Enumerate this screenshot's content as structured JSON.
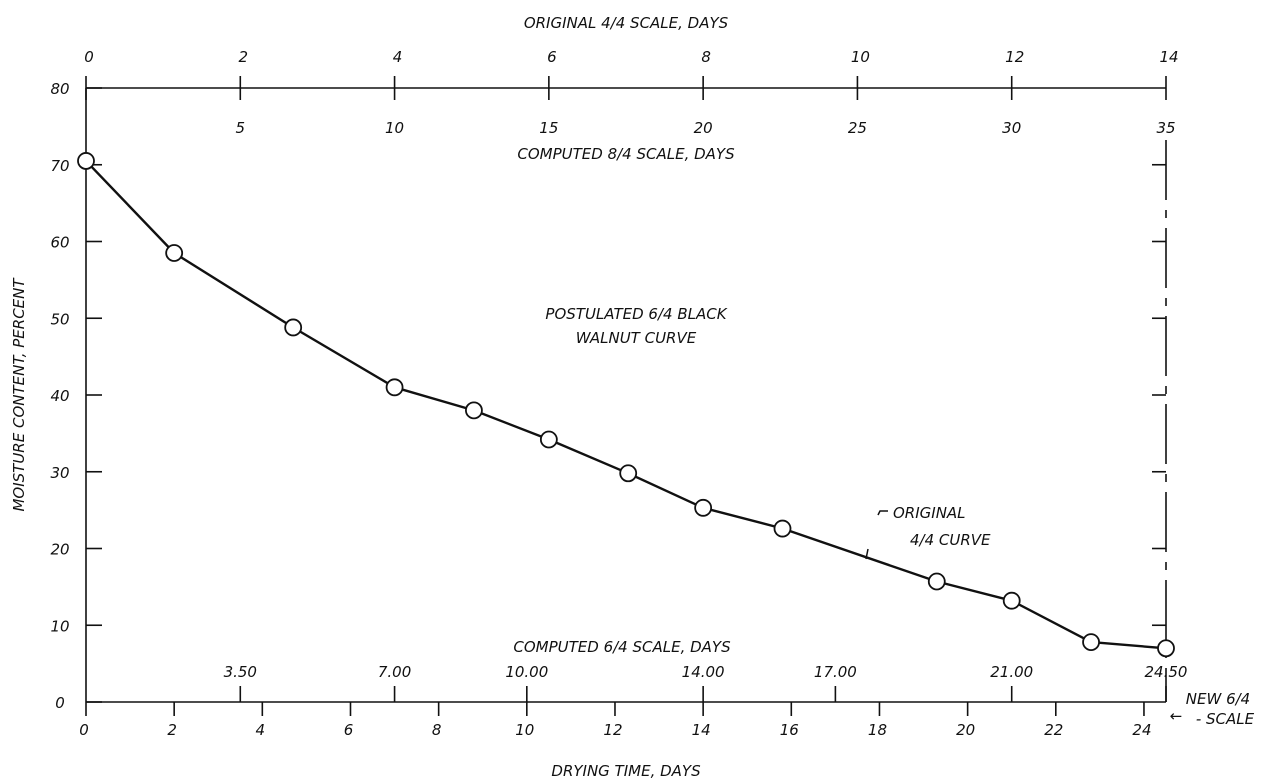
{
  "chart_data": {
    "type": "line",
    "title": "",
    "xlabel": "DRYING TIME, DAYS",
    "ylabel": "MOISTURE CONTENT, PERCENT",
    "xlim": [
      0,
      24.5
    ],
    "ylim": [
      0,
      80
    ],
    "x_ticks": [
      "0",
      "2",
      "4",
      "6",
      "8",
      "10",
      "12",
      "14",
      "16",
      "18",
      "20",
      "22",
      "24"
    ],
    "y_ticks": [
      "0",
      "10",
      "20",
      "30",
      "40",
      "50",
      "60",
      "70",
      "80"
    ],
    "grid": false,
    "series": [
      {
        "name": "",
        "x": [
          0,
          2,
          4.7,
          7.0,
          8.8,
          10.5,
          12.3,
          14.0,
          15.8,
          19.3,
          21.0,
          22.8,
          24.5
        ],
        "y": [
          70.5,
          58.5,
          48.8,
          41.0,
          38.0,
          34.2,
          29.8,
          25.3,
          22.6,
          15.7,
          13.2,
          7.8,
          7.0
        ],
        "marker": "open-circle"
      }
    ],
    "scales": {
      "top_original": {
        "label": "ORIGINAL 4/4 SCALE, DAYS",
        "ticks": [
          "0",
          "2",
          "4",
          "6",
          "8",
          "10",
          "12",
          "14"
        ]
      },
      "top_computed": {
        "label": "COMPUTED 8/4 SCALE, DAYS",
        "ticks": [
          "5",
          "10",
          "15",
          "20",
          "25",
          "30",
          "35"
        ]
      },
      "bottom_computed": {
        "label": "COMPUTED 6/4 SCALE, DAYS",
        "ticks": [
          "3.50",
          "7.00",
          "10.00",
          "14.00",
          "17.00",
          "21.00",
          "24.50"
        ]
      },
      "new_scale": {
        "label_line1": "NEW 6/4",
        "label_line2": "- SCALE",
        "arrow": "←"
      }
    },
    "annotations": [
      {
        "text_line1": "POSTULATED 6/4 BLACK",
        "text_line2": "WALNUT CURVE"
      },
      {
        "text_line1": "ORIGINAL",
        "text_line2": "4/4 CURVE"
      }
    ]
  }
}
